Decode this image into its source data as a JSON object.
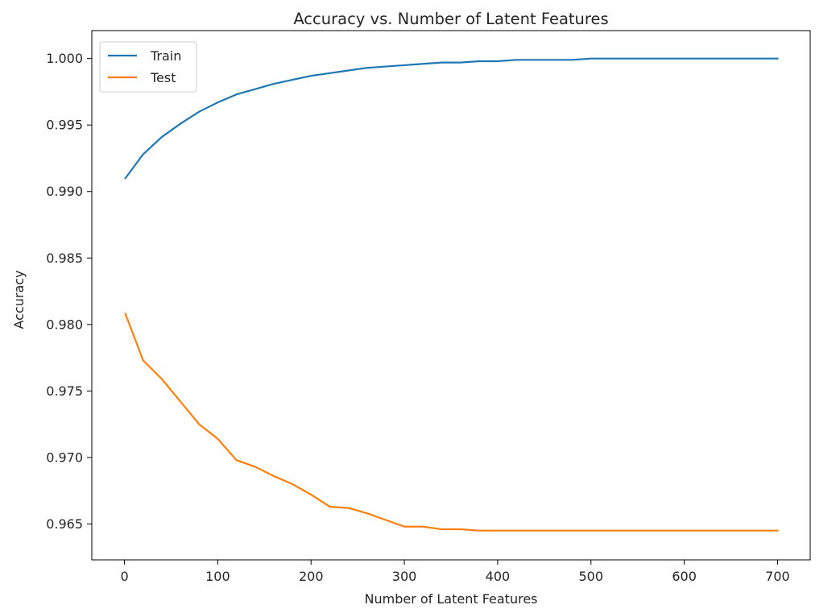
{
  "chart_data": {
    "type": "line",
    "title": "Accuracy vs. Number of Latent Features",
    "xlabel": "Number of Latent Features",
    "ylabel": "Accuracy",
    "xlim": [
      -35,
      735
    ],
    "ylim": [
      0.9623,
      1.0021
    ],
    "xticks": [
      0,
      100,
      200,
      300,
      400,
      500,
      600,
      700
    ],
    "xtick_labels": [
      "0",
      "100",
      "200",
      "300",
      "400",
      "500",
      "600",
      "700"
    ],
    "yticks": [
      0.965,
      0.97,
      0.975,
      0.98,
      0.985,
      0.99,
      0.995,
      1.0
    ],
    "ytick_labels": [
      "0.965",
      "0.970",
      "0.975",
      "0.980",
      "0.985",
      "0.990",
      "0.995",
      "1.000"
    ],
    "grid": false,
    "legend_position": "top-left",
    "x": [
      1,
      20,
      40,
      60,
      80,
      100,
      120,
      140,
      160,
      180,
      200,
      220,
      240,
      260,
      280,
      300,
      320,
      340,
      360,
      380,
      400,
      420,
      440,
      460,
      480,
      500,
      520,
      540,
      560,
      580,
      600,
      620,
      640,
      660,
      680,
      700
    ],
    "series": [
      {
        "name": "Train",
        "color": "#1f77b4",
        "values": [
          0.991,
          0.9928,
          0.9941,
          0.9951,
          0.996,
          0.9967,
          0.9973,
          0.9977,
          0.9981,
          0.9984,
          0.9987,
          0.9989,
          0.9991,
          0.9993,
          0.9994,
          0.9995,
          0.9996,
          0.9997,
          0.9997,
          0.9998,
          0.9998,
          0.9999,
          0.9999,
          0.9999,
          0.9999,
          1.0,
          1.0,
          1.0,
          1.0,
          1.0,
          1.0,
          1.0,
          1.0,
          1.0,
          1.0,
          1.0
        ]
      },
      {
        "name": "Test",
        "color": "#ff7f0e",
        "values": [
          0.9808,
          0.9773,
          0.9759,
          0.9742,
          0.9725,
          0.9714,
          0.9698,
          0.9693,
          0.9686,
          0.968,
          0.9672,
          0.9663,
          0.9662,
          0.9658,
          0.9653,
          0.9648,
          0.9648,
          0.9646,
          0.9646,
          0.9645,
          0.9645,
          0.9645,
          0.9645,
          0.9645,
          0.9645,
          0.9645,
          0.9645,
          0.9645,
          0.9645,
          0.9645,
          0.9645,
          0.9645,
          0.9645,
          0.9645,
          0.9645,
          0.9645
        ]
      }
    ]
  }
}
